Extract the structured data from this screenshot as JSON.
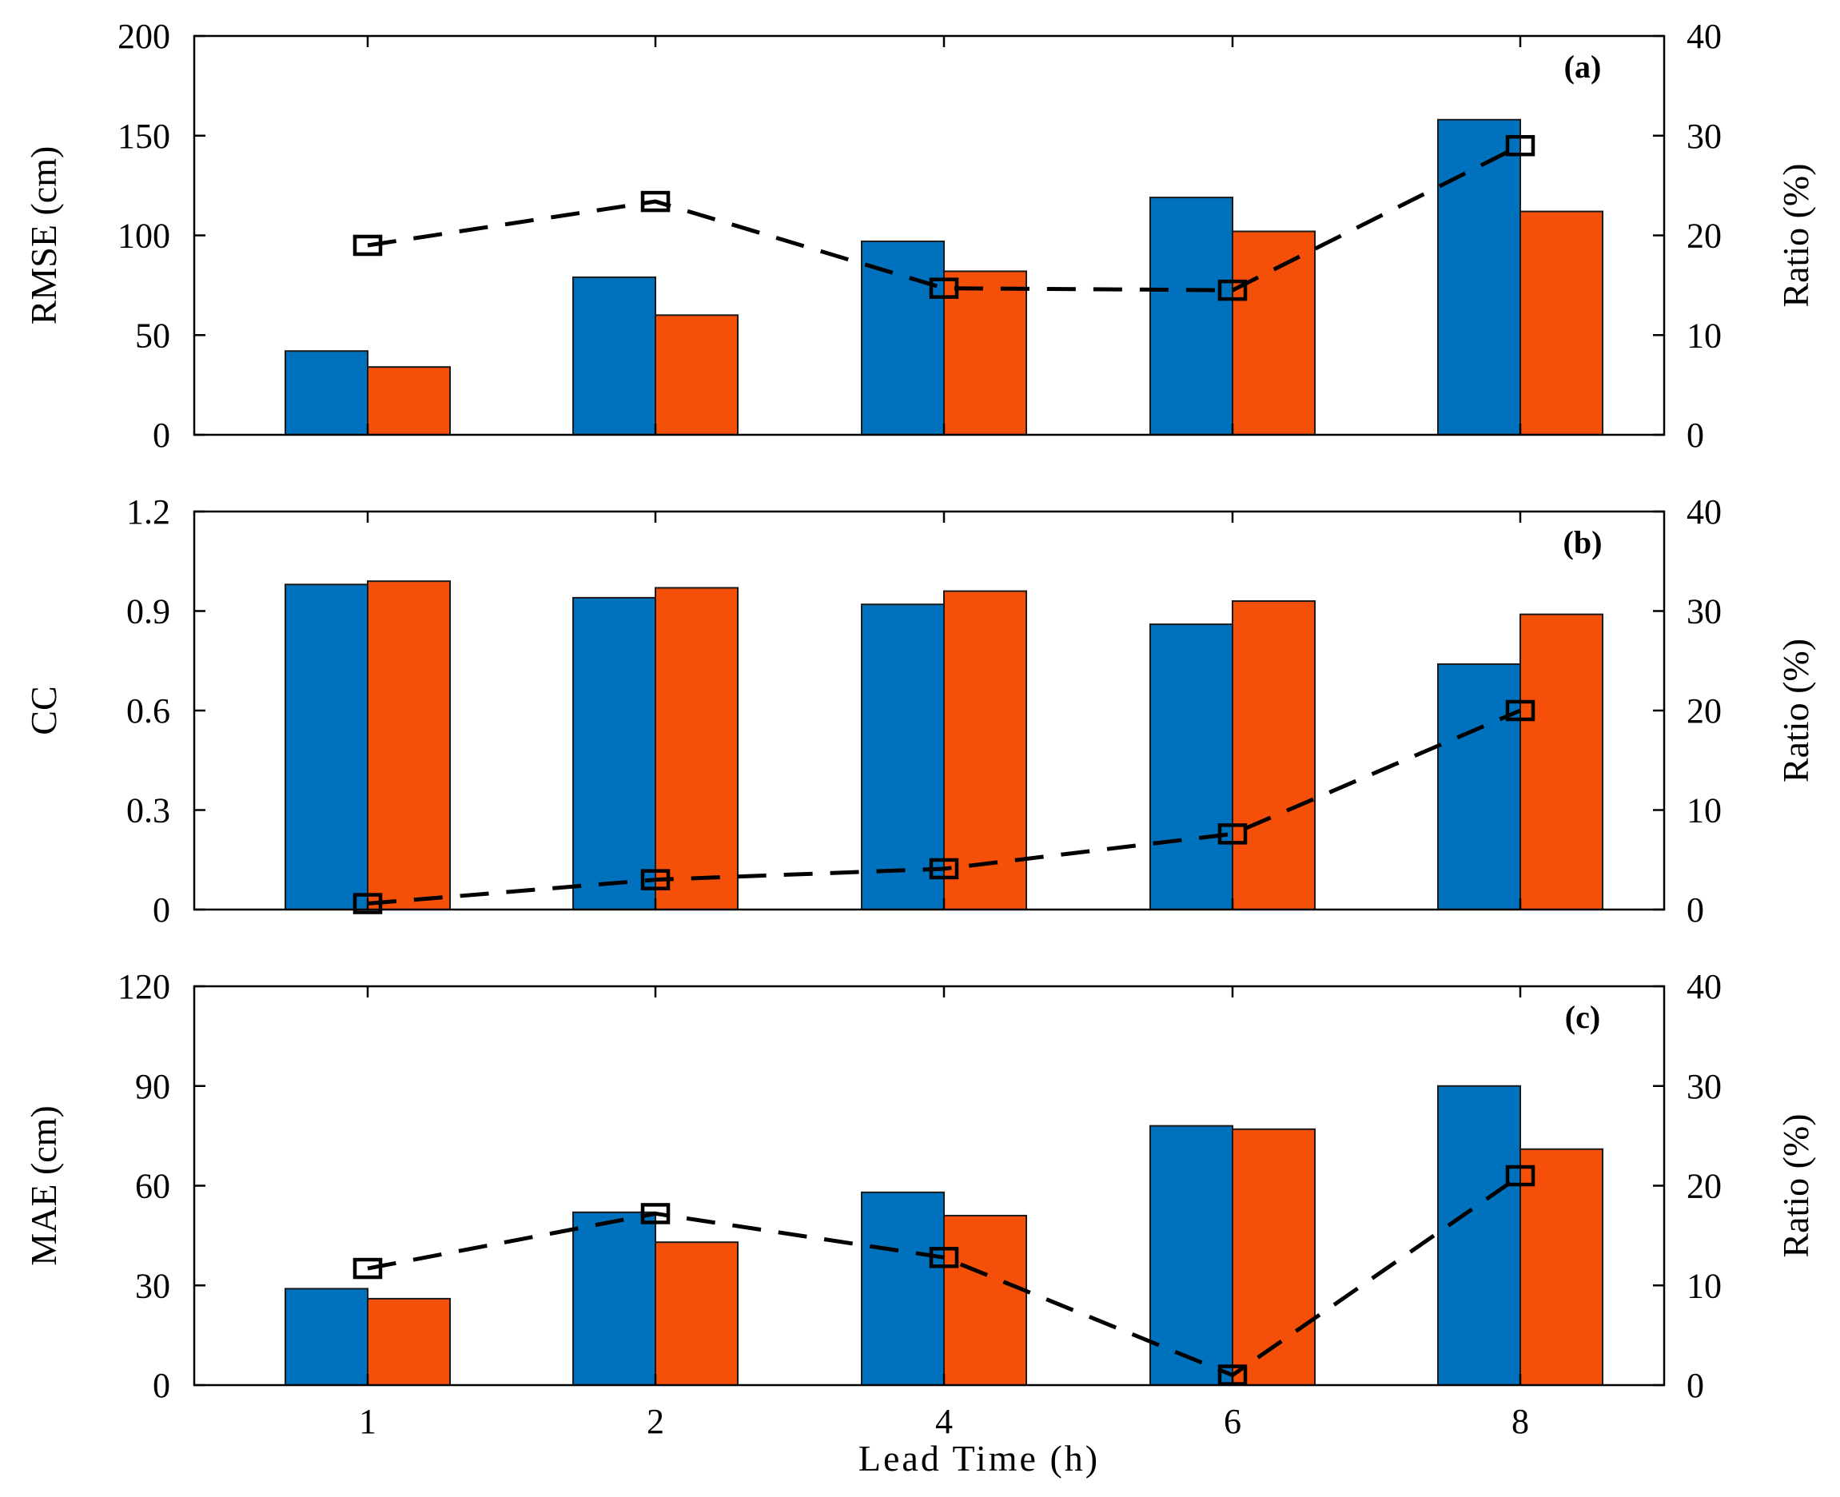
{
  "figure": {
    "xlabel": "Lead Time (h)",
    "colors": {
      "series1": "#0072BD",
      "series2": "#F5500A",
      "line": "#000000"
    }
  },
  "chart_data": [
    {
      "type": "bar",
      "panel_tag": "(a)",
      "categories": [
        "1",
        "2",
        "4",
        "6",
        "8"
      ],
      "ylabel": "RMSE (cm)",
      "ylim": [
        0,
        200
      ],
      "yticks": [
        "0",
        "50",
        "100",
        "150",
        "200"
      ],
      "y2label": "Ratio (%)",
      "y2lim": [
        0,
        40
      ],
      "y2ticks": [
        "0",
        "10",
        "20",
        "30",
        "40"
      ],
      "series": [
        {
          "name": "series1",
          "values": [
            42,
            79,
            97,
            119,
            158
          ]
        },
        {
          "name": "series2",
          "values": [
            34,
            60,
            82,
            102,
            112
          ]
        }
      ],
      "ratio": [
        19.0,
        23.4,
        14.7,
        14.5,
        29.0
      ]
    },
    {
      "type": "bar",
      "panel_tag": "(b)",
      "categories": [
        "1",
        "2",
        "4",
        "6",
        "8"
      ],
      "ylabel": "CC",
      "ylim": [
        0,
        1.2
      ],
      "yticks": [
        "0",
        "0.3",
        "0.6",
        "0.9",
        "1.2"
      ],
      "y2label": "Ratio (%)",
      "y2lim": [
        0,
        40
      ],
      "y2ticks": [
        "0",
        "10",
        "20",
        "30",
        "40"
      ],
      "series": [
        {
          "name": "series1",
          "values": [
            0.98,
            0.94,
            0.92,
            0.86,
            0.74
          ]
        },
        {
          "name": "series2",
          "values": [
            0.99,
            0.97,
            0.96,
            0.93,
            0.89
          ]
        }
      ],
      "ratio": [
        0.6,
        3.0,
        4.1,
        7.6,
        20.0
      ]
    },
    {
      "type": "bar",
      "panel_tag": "(c)",
      "categories": [
        "1",
        "2",
        "4",
        "6",
        "8"
      ],
      "ylabel": "MAE (cm)",
      "ylim": [
        0,
        120
      ],
      "yticks": [
        "0",
        "30",
        "60",
        "90",
        "120"
      ],
      "y2label": "Ratio (%)",
      "y2lim": [
        0,
        40
      ],
      "y2ticks": [
        "0",
        "10",
        "20",
        "30",
        "40"
      ],
      "series": [
        {
          "name": "series1",
          "values": [
            29,
            52,
            58,
            78,
            90
          ]
        },
        {
          "name": "series2",
          "values": [
            26,
            43,
            51,
            77,
            71
          ]
        }
      ],
      "ratio": [
        11.7,
        17.2,
        12.8,
        1.0,
        21.0
      ]
    }
  ]
}
